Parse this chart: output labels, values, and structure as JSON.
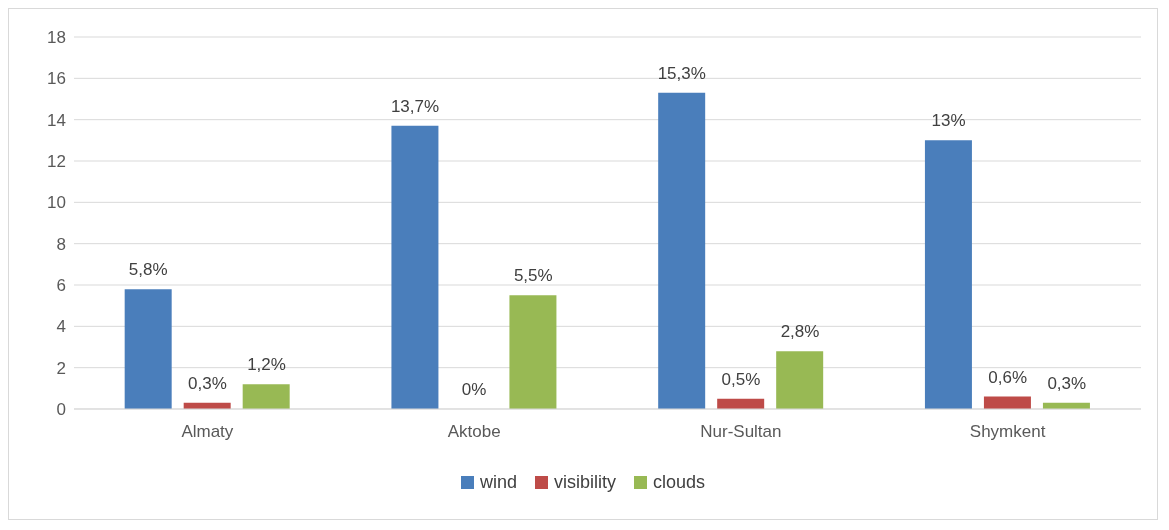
{
  "chart_data": {
    "type": "bar",
    "categories": [
      "Almaty",
      "Aktobe",
      "Nur-Sultan",
      "Shymkent"
    ],
    "series": [
      {
        "name": "wind",
        "color": "#4a7ebb",
        "values": [
          5.8,
          13.7,
          15.3,
          13
        ],
        "value_labels": [
          "5,8%",
          "13,7%",
          "15,3%",
          "13%"
        ]
      },
      {
        "name": "visibility",
        "color": "#be4b48",
        "values": [
          0.3,
          0,
          0.5,
          0.6
        ],
        "value_labels": [
          "0,3%",
          "0%",
          "0,5%",
          "0,6%"
        ]
      },
      {
        "name": "clouds",
        "color": "#98b954",
        "values": [
          1.2,
          5.5,
          2.8,
          0.3
        ],
        "value_labels": [
          "1,2%",
          "5,5%",
          "2,8%",
          "0,3%"
        ]
      }
    ],
    "ylim": [
      0,
      18
    ],
    "yticks": [
      0,
      2,
      4,
      6,
      8,
      10,
      12,
      14,
      16,
      18
    ],
    "grid": "y",
    "legend": "bottom"
  }
}
